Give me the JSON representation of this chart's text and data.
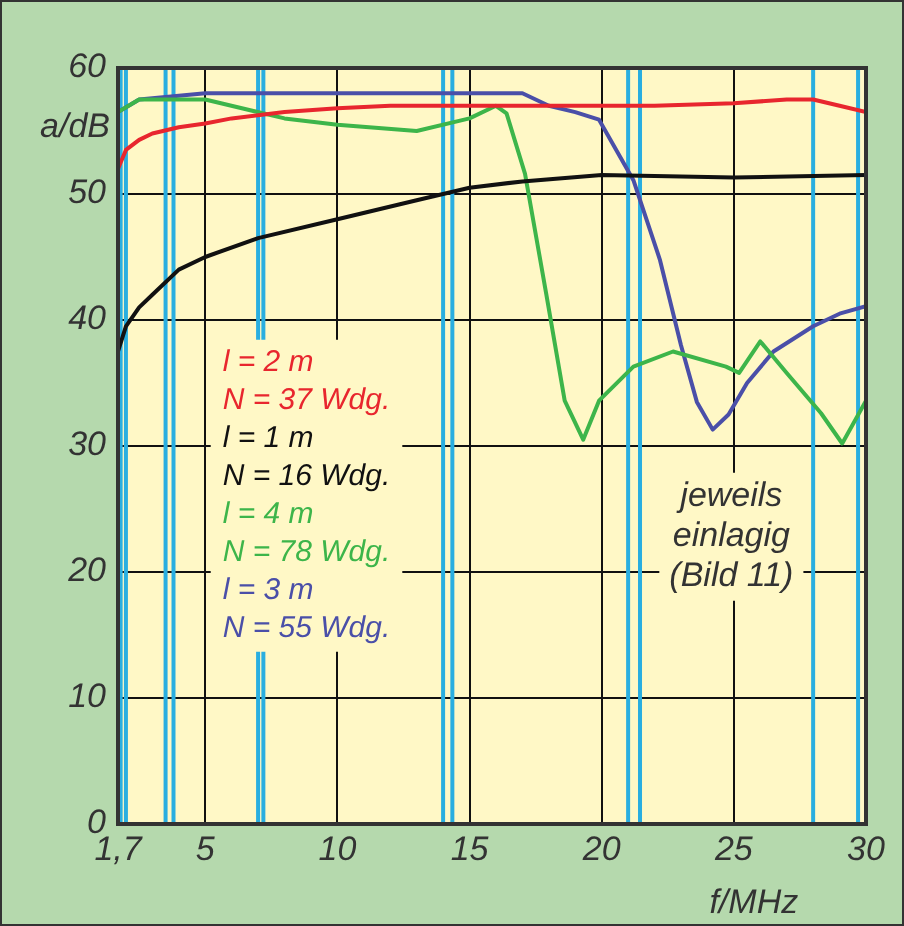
{
  "chart_data": {
    "type": "line",
    "xlabel": "f/MHz",
    "ylabel": "a/dB",
    "xlim": [
      1.7,
      30
    ],
    "xticks": [
      {
        "value": 1.7,
        "label": "1,7"
      },
      5,
      10,
      15,
      20,
      25,
      30
    ],
    "ylim": [
      0,
      60
    ],
    "yticks": [
      0,
      10,
      20,
      30,
      40,
      50,
      60
    ],
    "grid": true,
    "legend": "left",
    "marker": "none",
    "line_style": "solid",
    "annotations": [
      "jeweils\neinlagig\n(Bild 11)"
    ],
    "ref_lines": [
      {
        "axis": "x",
        "value": 1.8,
        "color": "#29aee0"
      },
      {
        "axis": "x",
        "value": 2.0,
        "color": "#29aee0"
      },
      {
        "axis": "x",
        "value": 3.5,
        "color": "#29aee0"
      },
      {
        "axis": "x",
        "value": 3.8,
        "color": "#29aee0"
      },
      {
        "axis": "x",
        "value": 7.0,
        "color": "#29aee0"
      },
      {
        "axis": "x",
        "value": 7.2,
        "color": "#29aee0"
      },
      {
        "axis": "x",
        "value": 14.0,
        "color": "#29aee0"
      },
      {
        "axis": "x",
        "value": 14.35,
        "color": "#29aee0"
      },
      {
        "axis": "x",
        "value": 21.0,
        "color": "#29aee0"
      },
      {
        "axis": "x",
        "value": 21.45,
        "color": "#29aee0"
      },
      {
        "axis": "x",
        "value": 28.0,
        "color": "#29aee0"
      },
      {
        "axis": "x",
        "value": 29.7,
        "color": "#29aee0"
      }
    ],
    "series": [
      {
        "name": "l = 2 m\nN = 37 Wdg.",
        "color": "#e8262e",
        "x": [
          1.7,
          2,
          2.5,
          3,
          4,
          5,
          6,
          8,
          10,
          12,
          15,
          18,
          20,
          22,
          25,
          27,
          28,
          29,
          30
        ],
        "values": [
          52,
          53.5,
          54.3,
          54.8,
          55.3,
          55.6,
          56,
          56.5,
          56.8,
          57,
          57,
          57,
          57,
          57,
          57.2,
          57.5,
          57.5,
          57,
          56.5
        ]
      },
      {
        "name": "l = 1 m\nN = 16 Wdg.",
        "color": "#111111",
        "x": [
          1.7,
          2,
          2.5,
          3,
          4,
          5,
          7,
          10,
          13,
          15,
          17,
          20,
          25,
          30
        ],
        "values": [
          37.5,
          39.5,
          41,
          42,
          44,
          45,
          46.5,
          48,
          49.5,
          50.5,
          51,
          51.5,
          51.3,
          51.5
        ]
      },
      {
        "name": "l = 4 m\nN = 78 Wdg.",
        "color": "#3db54a",
        "x": [
          1.7,
          2.5,
          5,
          8,
          10,
          13,
          15,
          16,
          16.4,
          17.1,
          17.9,
          18.6,
          19.3,
          19.9,
          21.2,
          22.7,
          24.7,
          25.2,
          26,
          27,
          28.3,
          29.1,
          30
        ],
        "values": [
          56.5,
          57.5,
          57.5,
          56,
          55.5,
          55,
          56,
          57,
          56.4,
          51.6,
          42.1,
          33.6,
          30.5,
          33.6,
          36.3,
          37.5,
          36.3,
          35.8,
          38.3,
          35.8,
          32.6,
          30.2,
          33.6
        ]
      },
      {
        "name": "l = 3 m\nN = 55 Wdg.",
        "color": "#4a4fa8",
        "x": [
          1.7,
          2.5,
          5,
          10,
          15,
          17,
          18,
          19,
          19.9,
          21.2,
          22.2,
          23,
          23.6,
          24.2,
          24.8,
          25.5,
          26.5,
          28,
          29,
          30
        ],
        "values": [
          56.5,
          57.5,
          58,
          58,
          58,
          58,
          57,
          56.5,
          55.9,
          51.1,
          44.8,
          38,
          33.5,
          31.3,
          32.5,
          35,
          37.5,
          39.5,
          40.5,
          41.1
        ]
      }
    ]
  }
}
